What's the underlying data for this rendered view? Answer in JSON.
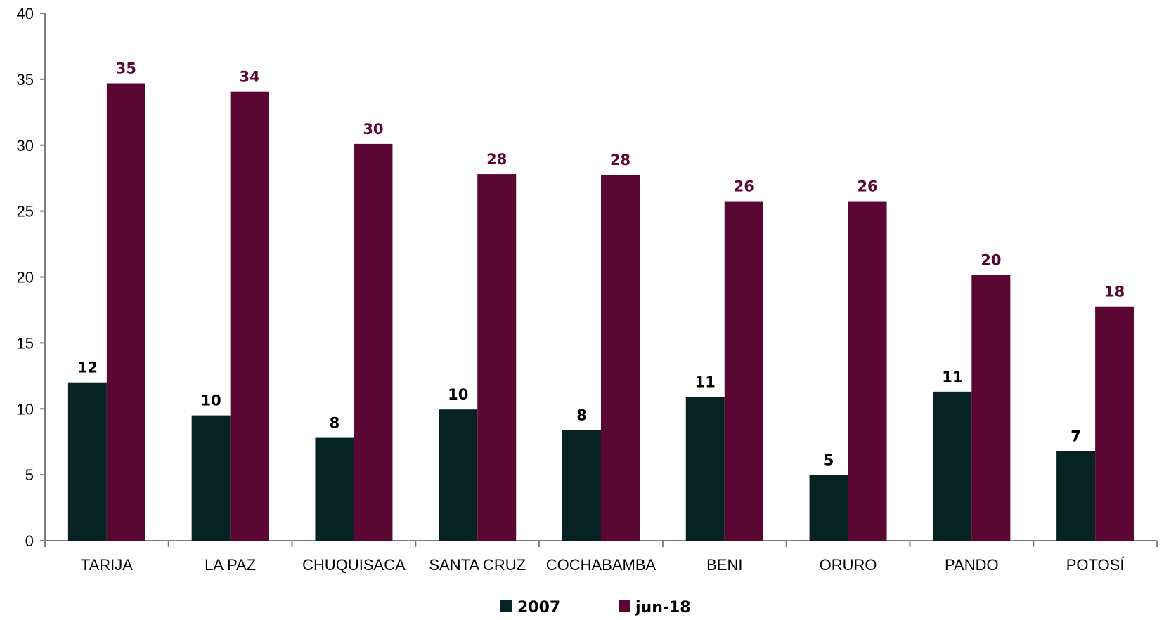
{
  "chart_data": {
    "type": "bar",
    "categories": [
      "TARIJA",
      "LA PAZ",
      "CHUQUISACA",
      "SANTA CRUZ",
      "COCHABAMBA",
      "BENI",
      "ORURO",
      "PANDO",
      "POTOSÍ"
    ],
    "series": [
      {
        "name": "2007",
        "color": "#062222",
        "values": [
          12.0,
          9.5,
          7.8,
          9.95,
          8.4,
          10.9,
          4.97,
          11.3,
          6.8
        ],
        "labels": [
          "12",
          "10",
          "8",
          "10",
          "8",
          "11",
          "5",
          "11",
          "7"
        ]
      },
      {
        "name": "jun-18",
        "color": "#5a0833",
        "values": [
          34.7,
          34.05,
          30.1,
          27.8,
          27.75,
          25.75,
          25.75,
          20.15,
          17.75
        ],
        "labels": [
          "35",
          "34",
          "30",
          "28",
          "28",
          "26",
          "26",
          "20",
          "18"
        ]
      }
    ],
    "ylim": [
      0,
      40
    ],
    "yticks": [
      "0",
      "5",
      "10",
      "15",
      "20",
      "25",
      "30",
      "35",
      "40"
    ],
    "grid": false,
    "legend": "bottom"
  }
}
